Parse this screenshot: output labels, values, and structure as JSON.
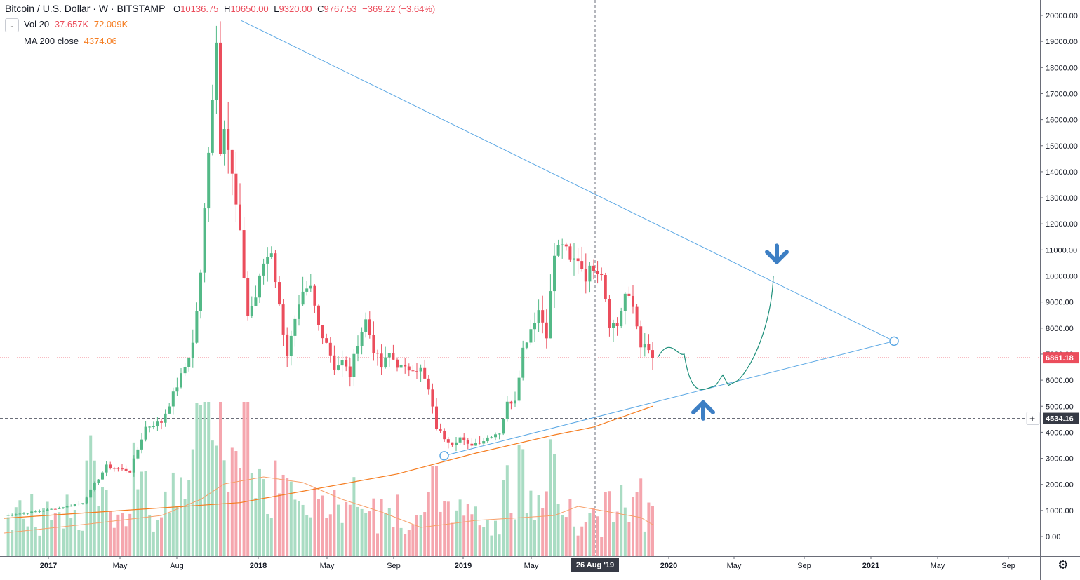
{
  "header": {
    "symbol": "Bitcoin / U.S. Dollar · W · BITSTAMP",
    "o_label": "O",
    "o_value": "10136.75",
    "h_label": "H",
    "h_value": "10650.00",
    "l_label": "L",
    "l_value": "9320.00",
    "c_label": "C",
    "c_value": "9767.53",
    "change": "−369.22 (−3.64%)",
    "vol_label": "Vol 20",
    "vol_value": "37.657K",
    "vol_ma": "72.009K",
    "ma_label": "MA 200 close",
    "ma_value": "4374.06"
  },
  "colors": {
    "up": "#53b987",
    "down": "#eb4d5c",
    "vol_up": "#a9dcc3",
    "vol_down": "#f5a6ae",
    "ma200": "#f57c1f",
    "vol_ma": "#f7a06a",
    "trendline": "#5ca8e4",
    "projection": "#1e8f7a",
    "arrow": "#3d7fc4",
    "last_price": "#eb4d5c",
    "crosshair_label": "#363a45"
  },
  "price_axis": {
    "ticks": [
      "20000.00",
      "19000.00",
      "18000.00",
      "17000.00",
      "16000.00",
      "15000.00",
      "14000.00",
      "13000.00",
      "12000.00",
      "11000.00",
      "10000.00",
      "9000.00",
      "8000.00",
      "7000.00",
      "6000.00",
      "5000.00",
      "4000.00",
      "3000.00",
      "2000.00",
      "1000.00",
      "0.00"
    ],
    "last_price_label": "6861.18",
    "crosshair_price_label": "4534.16"
  },
  "time_axis": {
    "labels": [
      "2017",
      "May",
      "Aug",
      "2018",
      "May",
      "Sep",
      "2019",
      "May",
      "2020",
      "May",
      "Sep",
      "2021",
      "May",
      "Sep"
    ],
    "crosshair_label": "26 Aug '19"
  },
  "icons": {
    "collapse": "chevron-down-icon",
    "settings": "gear-icon"
  },
  "chart_data": {
    "type": "candlestick",
    "title": "Bitcoin / U.S. Dollar · W · BITSTAMP",
    "interval": "weekly",
    "ylim": [
      0,
      20000
    ],
    "grid": false,
    "crosshair": {
      "date": "26 Aug '19",
      "price": 4534.16
    },
    "last_price": 6861.18,
    "anchors_close": [
      [
        0,
        800
      ],
      [
        10,
        1000
      ],
      [
        14,
        1100
      ],
      [
        20,
        1300
      ],
      [
        26,
        2700
      ],
      [
        32,
        2500
      ],
      [
        36,
        4200
      ],
      [
        40,
        4400
      ],
      [
        44,
        5800
      ],
      [
        46,
        6500
      ],
      [
        48,
        7400
      ],
      [
        50,
        10000
      ],
      [
        52,
        15000
      ],
      [
        54,
        19000
      ],
      [
        55,
        15000
      ],
      [
        56,
        16000
      ],
      [
        58,
        13800
      ],
      [
        60,
        11500
      ],
      [
        62,
        8500
      ],
      [
        64,
        9200
      ],
      [
        66,
        10500
      ],
      [
        68,
        11000
      ],
      [
        70,
        8800
      ],
      [
        72,
        7000
      ],
      [
        74,
        8200
      ],
      [
        76,
        9200
      ],
      [
        78,
        9500
      ],
      [
        80,
        8100
      ],
      [
        82,
        7500
      ],
      [
        84,
        6500
      ],
      [
        86,
        6700
      ],
      [
        88,
        6200
      ],
      [
        90,
        7500
      ],
      [
        92,
        8300
      ],
      [
        94,
        7200
      ],
      [
        96,
        6500
      ],
      [
        98,
        7000
      ],
      [
        100,
        6600
      ],
      [
        102,
        6400
      ],
      [
        104,
        6500
      ],
      [
        106,
        6400
      ],
      [
        108,
        5600
      ],
      [
        110,
        4200
      ],
      [
        112,
        3800
      ],
      [
        114,
        3600
      ],
      [
        116,
        3800
      ],
      [
        118,
        3500
      ],
      [
        120,
        3600
      ],
      [
        122,
        3700
      ],
      [
        124,
        3900
      ],
      [
        126,
        4000
      ],
      [
        128,
        5100
      ],
      [
        130,
        5300
      ],
      [
        132,
        7200
      ],
      [
        134,
        8000
      ],
      [
        136,
        8700
      ],
      [
        138,
        7800
      ],
      [
        140,
        10800
      ],
      [
        142,
        11300
      ],
      [
        144,
        10500
      ],
      [
        146,
        10700
      ],
      [
        148,
        10000
      ],
      [
        150,
        10400
      ],
      [
        152,
        10200
      ],
      [
        154,
        8200
      ],
      [
        156,
        8100
      ],
      [
        158,
        9300
      ],
      [
        160,
        8800
      ],
      [
        162,
        7400
      ],
      [
        164,
        7100
      ],
      [
        165,
        6861
      ]
    ],
    "volume_peak_K": 260,
    "ma200": [
      [
        0,
        700
      ],
      [
        60,
        1300
      ],
      [
        100,
        2400
      ],
      [
        120,
        3200
      ],
      [
        140,
        3900
      ],
      [
        150,
        4200
      ],
      [
        165,
        5000
      ]
    ],
    "trendlines": [
      {
        "name": "descending resistance",
        "from": {
          "week": 54,
          "price": 19800
        },
        "to": {
          "week": 210,
          "price": 7500
        }
      },
      {
        "name": "ascending support",
        "from": {
          "week": 112,
          "price": 3100
        },
        "to": {
          "week": 210,
          "price": 7500
        }
      }
    ],
    "projection_path_prices": [
      7000,
      6200,
      5700,
      5800,
      6000,
      7800,
      10000
    ],
    "arrows": [
      {
        "direction": "down",
        "at_price": 11000
      },
      {
        "direction": "up",
        "at_price": 5200
      }
    ]
  }
}
